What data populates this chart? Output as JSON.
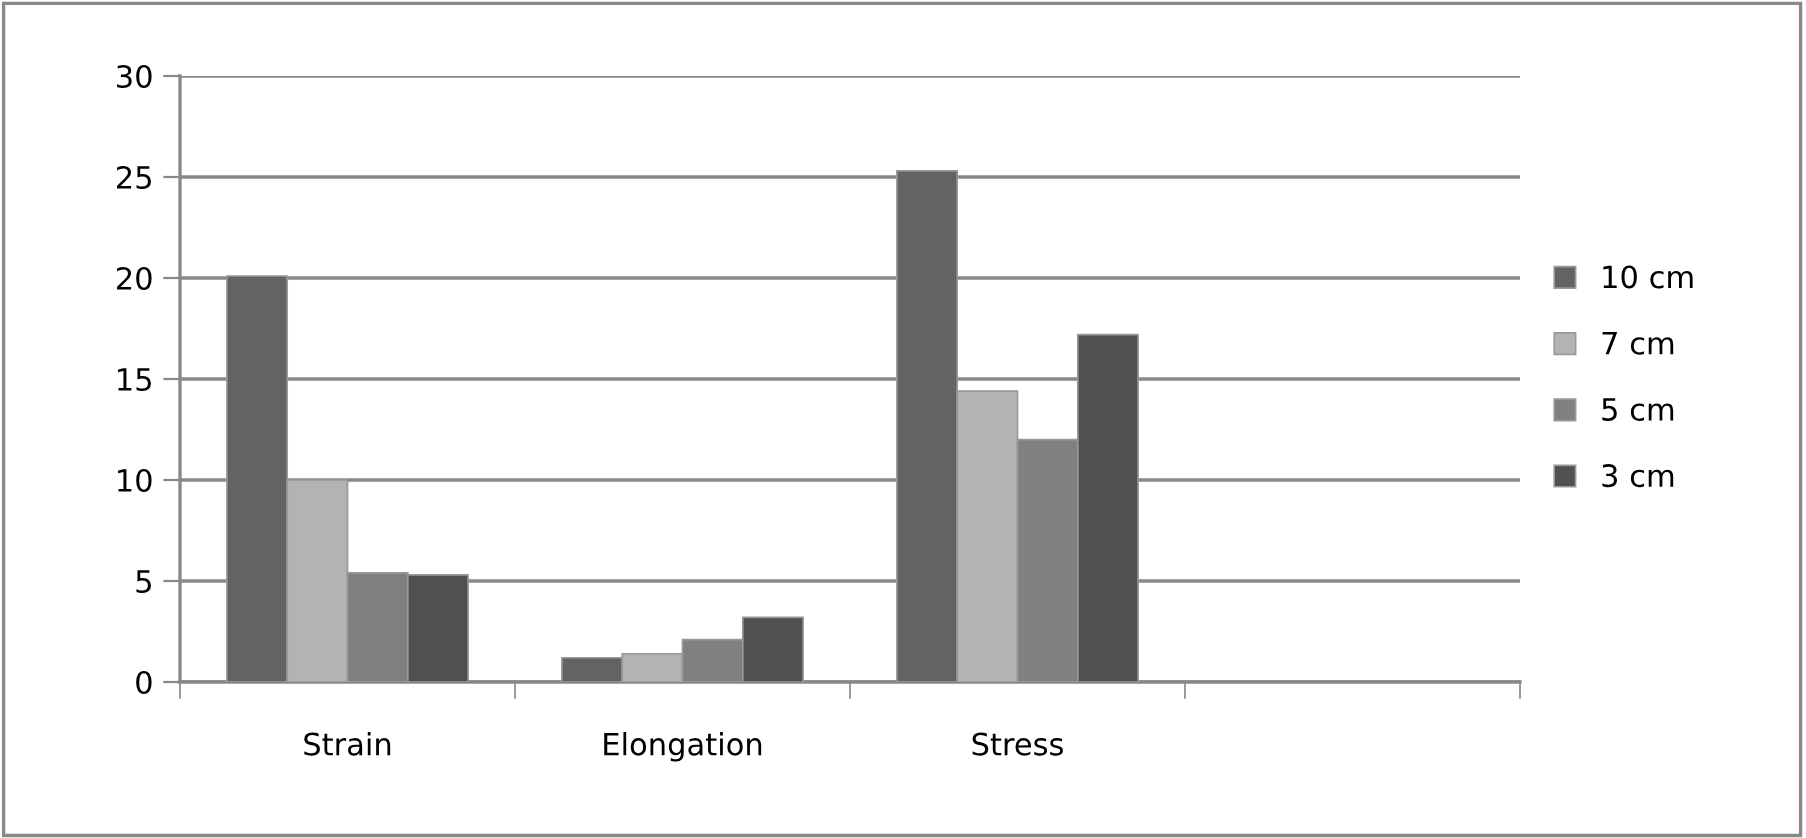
{
  "chart_data": {
    "type": "bar",
    "categories": [
      "Strain",
      "Elongation",
      "Stress",
      null
    ],
    "series": [
      {
        "name": "10 cm",
        "color": "#636363",
        "values": [
          20.1,
          1.2,
          25.3,
          null
        ]
      },
      {
        "name": "7 cm",
        "color": "#b3b3b3",
        "values": [
          10.0,
          1.4,
          14.4,
          null
        ]
      },
      {
        "name": "5 cm",
        "color": "#808080",
        "values": [
          5.4,
          2.1,
          12.0,
          null
        ]
      },
      {
        "name": "3 cm",
        "color": "#505050",
        "values": [
          5.3,
          3.2,
          17.2,
          null
        ]
      }
    ],
    "ylim": [
      0,
      30
    ],
    "yticks": [
      0,
      5,
      10,
      15,
      20,
      25,
      30
    ],
    "grid": "y",
    "legend": "right"
  }
}
